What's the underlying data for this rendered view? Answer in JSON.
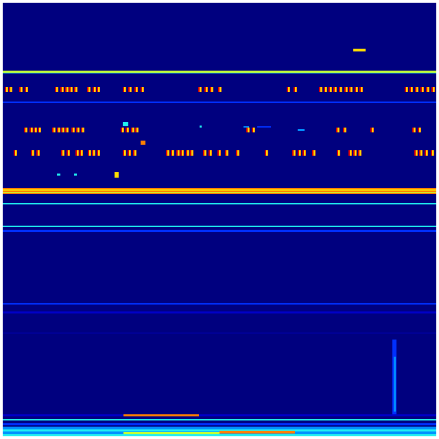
{
  "colors": {
    "background": "#00007f",
    "dark_blue": "#0000c8",
    "blue": "#0030ff",
    "light_blue": "#0090ff",
    "cyan": "#20f0f0",
    "yellow_green": "#c8ff30",
    "yellow": "#ffe000",
    "orange": "#ff8000",
    "red": "#e00000"
  }
}
